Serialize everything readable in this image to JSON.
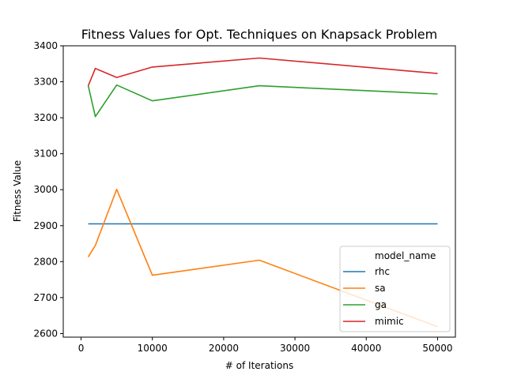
{
  "chart_data": {
    "type": "line",
    "title": "Fitness Values for Opt. Techniques on Knapsack Problem",
    "xlabel": "# of Iterations",
    "ylabel": "Fitness Value",
    "xlim": [
      -2500,
      52500
    ],
    "ylim": [
      2590,
      3400
    ],
    "xticks": [
      0,
      10000,
      20000,
      30000,
      40000,
      50000
    ],
    "yticks": [
      2600,
      2700,
      2800,
      2900,
      3000,
      3100,
      3200,
      3300,
      3400
    ],
    "grid": false,
    "legend": {
      "title": "model_name",
      "position": "bottom-right"
    },
    "series": [
      {
        "name": "rhc",
        "color": "#1f77b4",
        "x": [
          1000,
          2000,
          5000,
          10000,
          25000,
          50000
        ],
        "y": [
          2905,
          2905,
          2905,
          2905,
          2905,
          2905
        ]
      },
      {
        "name": "sa",
        "color": "#ff7f0e",
        "x": [
          1000,
          2000,
          5000,
          10000,
          25000,
          50000
        ],
        "y": [
          2813,
          2845,
          3001,
          2762,
          2804,
          2619
        ]
      },
      {
        "name": "ga",
        "color": "#2ca02c",
        "x": [
          1000,
          2000,
          5000,
          10000,
          25000,
          50000
        ],
        "y": [
          3289,
          3203,
          3291,
          3247,
          3289,
          3266
        ]
      },
      {
        "name": "mimic",
        "color": "#d62728",
        "x": [
          1000,
          2000,
          5000,
          10000,
          25000,
          50000
        ],
        "y": [
          3289,
          3337,
          3312,
          3341,
          3366,
          3323
        ]
      }
    ]
  }
}
